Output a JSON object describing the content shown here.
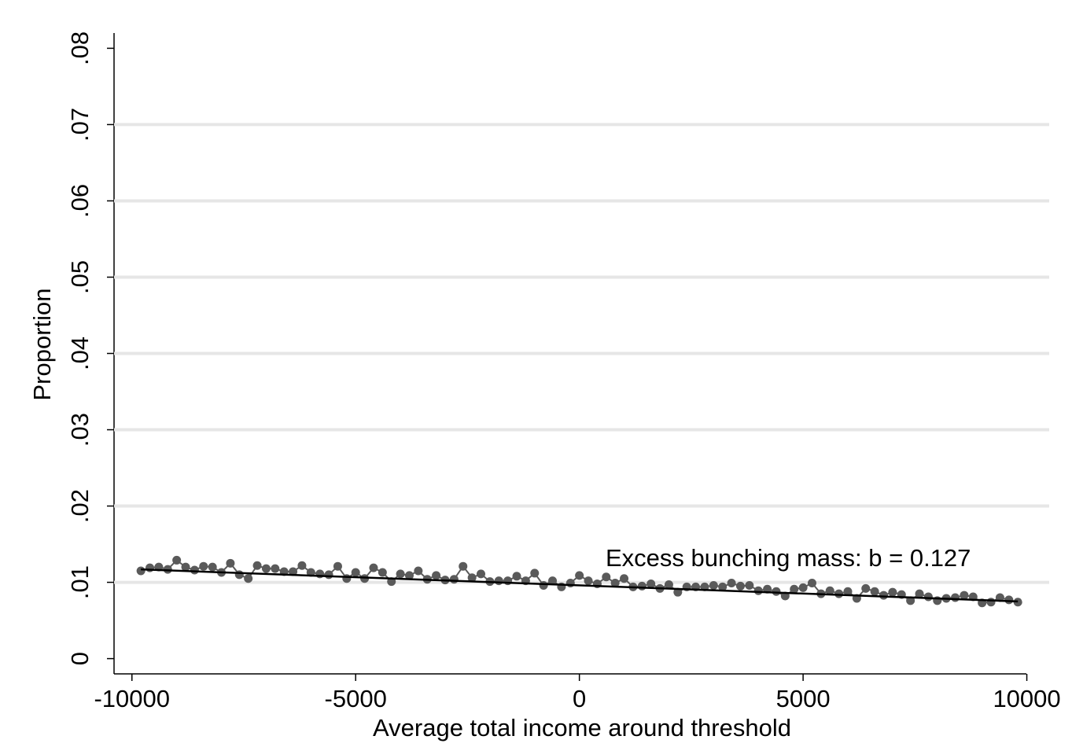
{
  "chart_data": {
    "type": "connected-scatter",
    "xlabel": "Average total income around threshold",
    "ylabel": "Proportion",
    "annotation": "Excess bunching mass: b = 0.127",
    "x": [
      -9800,
      -9600,
      -9400,
      -9200,
      -9000,
      -8800,
      -8600,
      -8400,
      -8200,
      -8000,
      -7800,
      -7600,
      -7400,
      -7200,
      -7000,
      -6800,
      -6600,
      -6400,
      -6200,
      -6000,
      -5800,
      -5600,
      -5400,
      -5200,
      -5000,
      -4800,
      -4600,
      -4400,
      -4200,
      -4000,
      -3800,
      -3600,
      -3400,
      -3200,
      -3000,
      -2800,
      -2600,
      -2400,
      -2200,
      -2000,
      -1800,
      -1600,
      -1400,
      -1200,
      -1000,
      -800,
      -600,
      -400,
      -200,
      0,
      200,
      400,
      600,
      800,
      1000,
      1200,
      1400,
      1600,
      1800,
      2000,
      2200,
      2400,
      2600,
      2800,
      3000,
      3200,
      3400,
      3600,
      3800,
      4000,
      4200,
      4400,
      4600,
      4800,
      5000,
      5200,
      5400,
      5600,
      5800,
      6000,
      6200,
      6400,
      6600,
      6800,
      7000,
      7200,
      7400,
      7600,
      7800,
      8000,
      8200,
      8400,
      8600,
      8800,
      9000,
      9200,
      9400,
      9600,
      9800
    ],
    "series": [
      {
        "color": "#5a5a5a",
        "values": [
          0.0115,
          0.0119,
          0.012,
          0.0117,
          0.0129,
          0.012,
          0.0116,
          0.0121,
          0.012,
          0.0113,
          0.0125,
          0.011,
          0.0105,
          0.0122,
          0.0118,
          0.0118,
          0.0114,
          0.0114,
          0.0122,
          0.0113,
          0.0111,
          0.011,
          0.0121,
          0.0105,
          0.0113,
          0.0105,
          0.0119,
          0.0113,
          0.0101,
          0.0111,
          0.0109,
          0.0115,
          0.0104,
          0.0109,
          0.0103,
          0.0104,
          0.0121,
          0.0106,
          0.0111,
          0.0101,
          0.0102,
          0.0102,
          0.0108,
          0.0102,
          0.0112,
          0.0096,
          0.0102,
          0.0094,
          0.0099,
          0.0109,
          0.0102,
          0.0098,
          0.0107,
          0.0099,
          0.0105,
          0.0094,
          0.0095,
          0.0098,
          0.0092,
          0.0097,
          0.0087,
          0.0094,
          0.0094,
          0.0094,
          0.0096,
          0.0094,
          0.0099,
          0.0095,
          0.0096,
          0.0089,
          0.0091,
          0.0088,
          0.0082,
          0.0091,
          0.0093,
          0.0099,
          0.0085,
          0.0089,
          0.0085,
          0.0088,
          0.0079,
          0.0092,
          0.0088,
          0.0083,
          0.0087,
          0.0084,
          0.0076,
          0.0085,
          0.0081,
          0.0076,
          0.0079,
          0.008,
          0.0083,
          0.0081,
          0.0073,
          0.0074,
          0.008,
          0.0077,
          0.0074
        ]
      }
    ],
    "fit": {
      "color": "#000000",
      "x": [
        -9800,
        9800
      ],
      "values": [
        0.0117,
        0.0075
      ]
    },
    "xlim": [
      -10400,
      10500
    ],
    "ylim": [
      -0.002,
      0.082
    ],
    "xticks": [
      -10000,
      -5000,
      0,
      5000,
      10000
    ],
    "yticks": [
      0,
      {
        "value": 0.01,
        "label": ".01"
      },
      {
        "value": 0.02,
        "label": ".02"
      },
      {
        "value": 0.03,
        "label": ".03"
      },
      {
        "value": 0.04,
        "label": ".04"
      },
      {
        "value": 0.05,
        "label": ".05"
      },
      {
        "value": 0.06,
        "label": ".06"
      },
      {
        "value": 0.07,
        "label": ".07"
      },
      {
        "value": 0.08,
        "label": ".08"
      }
    ],
    "grid": true
  }
}
